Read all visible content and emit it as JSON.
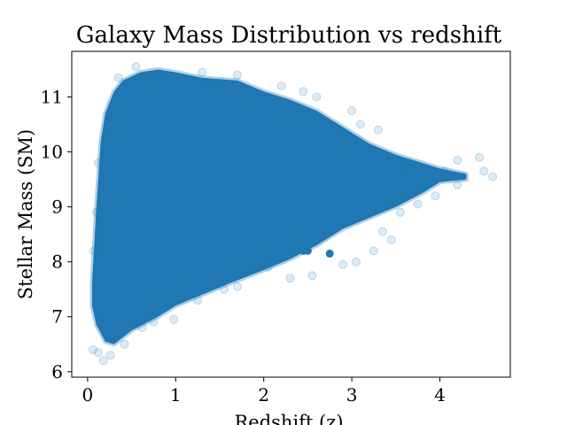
{
  "chart_data": {
    "type": "scatter",
    "title": "Galaxy Mass Distribution vs redshift",
    "xlabel": "Redshift (z)",
    "ylabel": "Stellar Mass (SM)",
    "xlim": [
      -0.18,
      4.8
    ],
    "ylim": [
      5.9,
      11.83
    ],
    "xticks": [
      0,
      1,
      2,
      3,
      4
    ],
    "yticks": [
      6,
      7,
      8,
      9,
      10,
      11
    ],
    "grid": false,
    "legend": "none",
    "marker_color": "#1f77b4",
    "marker_alpha": 0.15,
    "series": [
      {
        "envelope": {
          "upper": [
            [
              0.05,
              7.6
            ],
            [
              0.1,
              9.0
            ],
            [
              0.15,
              10.2
            ],
            [
              0.2,
              10.7
            ],
            [
              0.3,
              11.1
            ],
            [
              0.4,
              11.3
            ],
            [
              0.6,
              11.45
            ],
            [
              0.8,
              11.5
            ],
            [
              1.0,
              11.45
            ],
            [
              1.3,
              11.35
            ],
            [
              1.7,
              11.3
            ],
            [
              2.0,
              11.1
            ],
            [
              2.3,
              10.95
            ],
            [
              2.6,
              10.75
            ],
            [
              2.9,
              10.45
            ],
            [
              3.2,
              10.15
            ],
            [
              3.5,
              9.95
            ],
            [
              3.8,
              9.8
            ],
            [
              4.0,
              9.7
            ],
            [
              4.3,
              9.6
            ]
          ],
          "lower": [
            [
              0.05,
              7.2
            ],
            [
              0.1,
              6.85
            ],
            [
              0.2,
              6.55
            ],
            [
              0.3,
              6.5
            ],
            [
              0.5,
              6.75
            ],
            [
              0.8,
              7.0
            ],
            [
              1.0,
              7.2
            ],
            [
              1.3,
              7.4
            ],
            [
              1.6,
              7.6
            ],
            [
              2.0,
              7.85
            ],
            [
              2.3,
              8.05
            ],
            [
              2.6,
              8.3
            ],
            [
              2.9,
              8.6
            ],
            [
              3.2,
              8.8
            ],
            [
              3.5,
              9.0
            ],
            [
              3.8,
              9.25
            ],
            [
              4.0,
              9.45
            ],
            [
              4.3,
              9.5
            ]
          ]
        },
        "cluster_points": [
          [
            2.45,
            8.2
          ],
          [
            2.5,
            8.2
          ],
          [
            2.75,
            8.15
          ]
        ],
        "sparse_points": [
          [
            0.06,
            6.4
          ],
          [
            0.12,
            6.35
          ],
          [
            0.18,
            6.2
          ],
          [
            0.26,
            6.3
          ],
          [
            0.42,
            6.5
          ],
          [
            0.62,
            6.8
          ],
          [
            0.98,
            6.95
          ],
          [
            1.25,
            7.3
          ],
          [
            1.7,
            7.55
          ],
          [
            2.3,
            7.7
          ],
          [
            2.55,
            7.75
          ],
          [
            2.9,
            7.95
          ],
          [
            3.05,
            8.0
          ],
          [
            3.25,
            8.2
          ],
          [
            3.35,
            8.55
          ],
          [
            3.55,
            8.9
          ],
          [
            3.75,
            9.05
          ],
          [
            3.95,
            9.2
          ],
          [
            4.2,
            9.4
          ],
          [
            4.25,
            9.55
          ],
          [
            4.5,
            9.65
          ],
          [
            4.6,
            9.55
          ],
          [
            4.45,
            9.9
          ],
          [
            4.2,
            9.85
          ],
          [
            4.05,
            9.65
          ],
          [
            3.6,
            9.75
          ],
          [
            3.3,
            10.4
          ],
          [
            3.1,
            10.5
          ],
          [
            3.0,
            10.75
          ],
          [
            2.6,
            11.0
          ],
          [
            2.45,
            11.1
          ],
          [
            2.2,
            11.2
          ],
          [
            1.7,
            11.4
          ],
          [
            1.3,
            11.45
          ],
          [
            0.55,
            11.55
          ],
          [
            0.35,
            11.35
          ],
          [
            0.12,
            9.8
          ],
          [
            0.1,
            8.9
          ],
          [
            0.07,
            8.2
          ],
          [
            3.45,
            8.4
          ],
          [
            2.05,
            7.9
          ],
          [
            1.55,
            7.5
          ],
          [
            0.75,
            6.9
          ]
        ]
      }
    ]
  }
}
